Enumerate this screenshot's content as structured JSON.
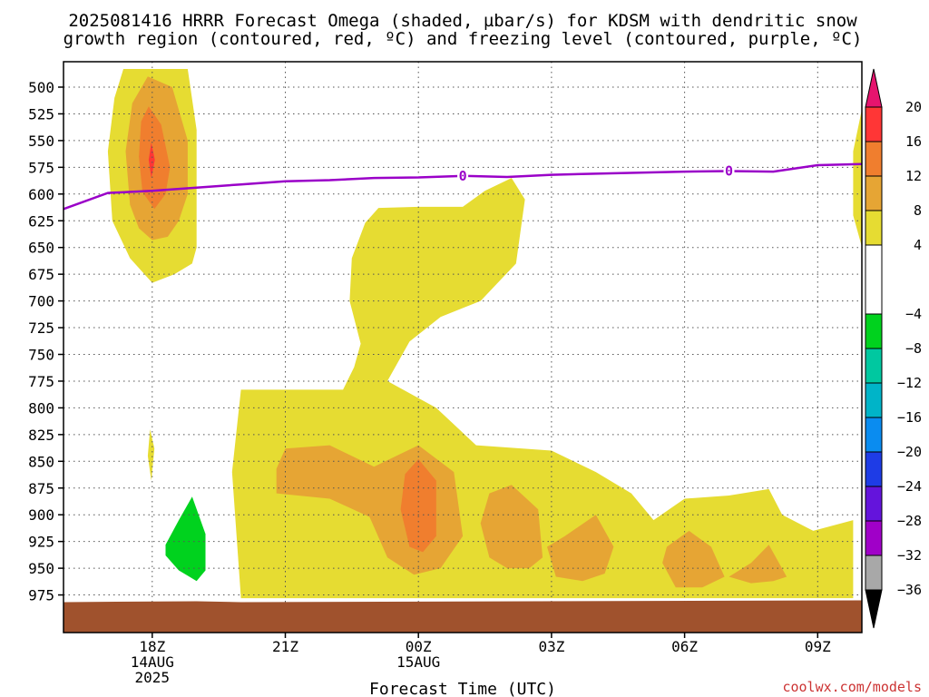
{
  "chart_data": {
    "type": "contour",
    "title": [
      "2025081416 HRRR Forecast Omega (shaded, µbar/s) for KDSM with dendritic snow",
      "growth region (contoured, red, ºC) and freezing level (contoured, purple, ºC)"
    ],
    "xlabel": "Forecast Time (UTC)",
    "credit": "coolwx.com/models",
    "x_ticks": [
      {
        "hour": 18,
        "lines": [
          "18Z",
          "14AUG",
          "2025"
        ]
      },
      {
        "hour": 21,
        "lines": [
          "21Z"
        ]
      },
      {
        "hour": 24,
        "lines": [
          "00Z",
          "15AUG"
        ]
      },
      {
        "hour": 27,
        "lines": [
          "03Z"
        ]
      },
      {
        "hour": 30,
        "lines": [
          "06Z"
        ]
      },
      {
        "hour": 33,
        "lines": [
          "09Z"
        ]
      }
    ],
    "xlim": [
      16,
      34
    ],
    "y_ticks": [
      500,
      525,
      550,
      575,
      600,
      625,
      650,
      675,
      700,
      725,
      750,
      775,
      800,
      825,
      850,
      875,
      900,
      925,
      950,
      975
    ],
    "ylim": [
      480,
      990
    ],
    "colorbar": {
      "bins": [
        {
          "from": 16,
          "to": 20,
          "color": "#ff3636"
        },
        {
          "from": 12,
          "to": 16,
          "color": "#f07e2e"
        },
        {
          "from": 8,
          "to": 12,
          "color": "#e6a534"
        },
        {
          "from": 4,
          "to": 8,
          "color": "#e6dc32"
        },
        {
          "from": -4,
          "to": 4,
          "color": "#ffffff"
        },
        {
          "from": -8,
          "to": -4,
          "color": "#00d21e"
        },
        {
          "from": -12,
          "to": -8,
          "color": "#00c8a0"
        },
        {
          "from": -16,
          "to": -12,
          "color": "#00b4c8"
        },
        {
          "from": -20,
          "to": -16,
          "color": "#0a8cf0"
        },
        {
          "from": -24,
          "to": -20,
          "color": "#1e3ce6"
        },
        {
          "from": -28,
          "to": -24,
          "color": "#6414dc"
        },
        {
          "from": -32,
          "to": -28,
          "color": "#a000c8"
        },
        {
          "from": -36,
          "to": -32,
          "color": "#a8a8a8"
        }
      ],
      "top_arrow_color": "#e6146e",
      "bottom_arrow_color": "#000000",
      "labels": [
        "20",
        "16",
        "12",
        "8",
        "4",
        "−4",
        "−8",
        "−12",
        "−16",
        "−20",
        "−24",
        "−28",
        "−32",
        "−36"
      ]
    },
    "freezing_level": {
      "color": "#9a00c8",
      "label": "0",
      "points": [
        [
          16,
          614
        ],
        [
          17,
          599
        ],
        [
          18,
          597
        ],
        [
          19,
          594
        ],
        [
          20,
          591
        ],
        [
          21,
          588
        ],
        [
          22,
          587
        ],
        [
          23,
          585
        ],
        [
          24,
          584.5
        ],
        [
          25,
          583
        ],
        [
          26,
          584
        ],
        [
          27,
          582
        ],
        [
          28,
          581
        ],
        [
          29,
          580
        ],
        [
          30,
          579
        ],
        [
          31,
          578.5
        ],
        [
          32,
          579
        ],
        [
          33,
          573
        ],
        [
          34,
          572
        ]
      ],
      "label_hours": [
        25,
        31
      ]
    },
    "regions": [
      {
        "level": 4,
        "color": "#e6dc32",
        "points": [
          [
            17.35,
            483
          ],
          [
            18.8,
            483
          ],
          [
            19.0,
            540
          ],
          [
            19.0,
            650
          ],
          [
            18.9,
            665
          ],
          [
            18.5,
            675
          ],
          [
            18.0,
            683
          ],
          [
            17.5,
            660
          ],
          [
            17.1,
            625
          ],
          [
            17.0,
            560
          ],
          [
            17.15,
            510
          ]
        ]
      },
      {
        "level": 8,
        "color": "#e6a534",
        "points": [
          [
            17.9,
            490
          ],
          [
            18.45,
            500
          ],
          [
            18.8,
            550
          ],
          [
            18.8,
            600
          ],
          [
            18.6,
            625
          ],
          [
            18.35,
            640
          ],
          [
            18.0,
            643
          ],
          [
            17.7,
            632
          ],
          [
            17.5,
            610
          ],
          [
            17.4,
            560
          ],
          [
            17.55,
            515
          ]
        ]
      },
      {
        "level": 12,
        "color": "#f07e2e",
        "points": [
          [
            17.92,
            518
          ],
          [
            18.2,
            535
          ],
          [
            18.4,
            575
          ],
          [
            18.3,
            600
          ],
          [
            18.05,
            614
          ],
          [
            17.78,
            598
          ],
          [
            17.7,
            565
          ],
          [
            17.75,
            532
          ]
        ]
      },
      {
        "level": 16,
        "color": "#ff3636",
        "points": [
          [
            17.98,
            552
          ],
          [
            18.06,
            568
          ],
          [
            17.98,
            585
          ],
          [
            17.92,
            568
          ]
        ]
      },
      {
        "level": 4,
        "color": "#e6dc32",
        "points": [
          [
            17.95,
            820
          ],
          [
            18.05,
            838
          ],
          [
            17.98,
            868
          ],
          [
            17.9,
            845
          ]
        ]
      },
      {
        "level": 4,
        "color": "#e6dc32",
        "points": [
          [
            22.5,
            660
          ],
          [
            22.8,
            627
          ],
          [
            23.1,
            613
          ],
          [
            24.0,
            612
          ],
          [
            25.0,
            612
          ],
          [
            25.5,
            597
          ],
          [
            26.1,
            585
          ],
          [
            26.4,
            605
          ],
          [
            26.2,
            665
          ],
          [
            25.4,
            700
          ],
          [
            24.5,
            715
          ],
          [
            23.8,
            738
          ],
          [
            23.3,
            775
          ],
          [
            24.4,
            800
          ],
          [
            25.3,
            835
          ],
          [
            27.0,
            840
          ],
          [
            28.0,
            860
          ],
          [
            28.8,
            880
          ],
          [
            29.3,
            905
          ],
          [
            30.0,
            885
          ],
          [
            31.0,
            882
          ],
          [
            31.9,
            876
          ],
          [
            32.2,
            900
          ],
          [
            32.9,
            915
          ],
          [
            33.8,
            905
          ],
          [
            33.8,
            978
          ],
          [
            20.0,
            978
          ],
          [
            19.8,
            860
          ],
          [
            20.0,
            783
          ],
          [
            22.3,
            783
          ],
          [
            22.55,
            762
          ],
          [
            22.7,
            740
          ],
          [
            22.45,
            700
          ]
        ]
      },
      {
        "level": 8,
        "color": "#e6a534",
        "points": [
          [
            20.8,
            857
          ],
          [
            21.0,
            838
          ],
          [
            22.0,
            835
          ],
          [
            23.0,
            855
          ],
          [
            24.0,
            835
          ],
          [
            24.8,
            860
          ],
          [
            25.0,
            920
          ],
          [
            24.5,
            950
          ],
          [
            23.9,
            956
          ],
          [
            23.3,
            940
          ],
          [
            22.9,
            902
          ],
          [
            22.0,
            885
          ],
          [
            20.8,
            880
          ]
        ]
      },
      {
        "level": 12,
        "color": "#f07e2e",
        "points": [
          [
            24.0,
            848
          ],
          [
            24.4,
            868
          ],
          [
            24.4,
            920
          ],
          [
            24.1,
            935
          ],
          [
            23.8,
            930
          ],
          [
            23.6,
            895
          ],
          [
            23.7,
            862
          ]
        ]
      },
      {
        "level": 8,
        "color": "#e6a534",
        "points": [
          [
            25.4,
            908
          ],
          [
            25.6,
            880
          ],
          [
            26.1,
            872
          ],
          [
            26.7,
            895
          ],
          [
            26.8,
            940
          ],
          [
            26.5,
            950
          ],
          [
            26.0,
            950
          ],
          [
            25.6,
            940
          ]
        ]
      },
      {
        "level": 8,
        "color": "#e6a534",
        "points": [
          [
            26.9,
            930
          ],
          [
            27.3,
            920
          ],
          [
            28.0,
            900
          ],
          [
            28.4,
            930
          ],
          [
            28.2,
            955
          ],
          [
            27.7,
            962
          ],
          [
            27.1,
            958
          ]
        ]
      },
      {
        "level": 8,
        "color": "#e6a534",
        "points": [
          [
            29.5,
            945
          ],
          [
            29.6,
            930
          ],
          [
            30.1,
            915
          ],
          [
            30.6,
            930
          ],
          [
            30.9,
            958
          ],
          [
            30.4,
            968
          ],
          [
            29.8,
            968
          ]
        ]
      },
      {
        "level": 8,
        "color": "#e6a534",
        "points": [
          [
            31.0,
            958
          ],
          [
            31.5,
            945
          ],
          [
            31.9,
            928
          ],
          [
            32.3,
            958
          ],
          [
            32.0,
            962
          ],
          [
            31.5,
            964
          ]
        ]
      },
      {
        "level": 4,
        "color": "#e6dc32",
        "points": [
          [
            34.0,
            520
          ],
          [
            33.8,
            560
          ],
          [
            33.8,
            620
          ],
          [
            34.0,
            650
          ]
        ]
      },
      {
        "level": -4,
        "color": "#00d21e",
        "points": [
          [
            18.3,
            928
          ],
          [
            18.6,
            905
          ],
          [
            18.9,
            883
          ],
          [
            19.2,
            918
          ],
          [
            19.2,
            952
          ],
          [
            19.0,
            962
          ],
          [
            18.6,
            952
          ],
          [
            18.3,
            938
          ]
        ]
      }
    ],
    "surface_color": "#a0522d",
    "surface_pressure": 980
  }
}
